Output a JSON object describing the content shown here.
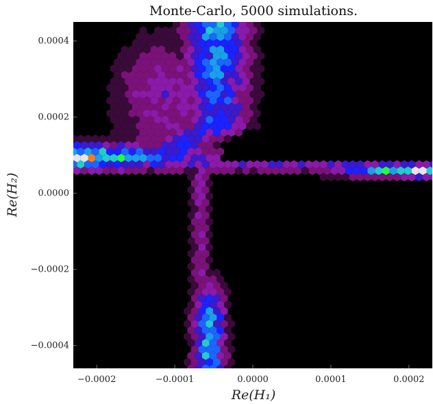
{
  "chart_data": {
    "type": "heatmap",
    "subtype": "hexbin",
    "title": "Monte-Carlo, 5000 simulations.",
    "xlabel": "Re(H₁)",
    "ylabel": "Re(H₂)",
    "xlim": [
      -0.00023,
      0.00023
    ],
    "ylim": [
      -0.00046,
      0.00045
    ],
    "x_ticks": [
      -0.0002,
      -0.0001,
      0.0,
      0.0001,
      0.0002
    ],
    "x_tick_labels": [
      "−0.0002",
      "−0.0001",
      "0.0000",
      "0.0001",
      "0.0002"
    ],
    "y_ticks": [
      -0.0004,
      -0.0002,
      0.0,
      0.0002,
      0.0004
    ],
    "y_tick_labels": [
      "−0.0004",
      "−0.0002",
      "0.0000",
      "0.0002",
      "0.0004"
    ],
    "background": "#000000",
    "colormap": [
      "#000000",
      "#3a0a3a",
      "#7a127a",
      "#8a1aaa",
      "#3a1acc",
      "#1a22ff",
      "#1a66ff",
      "#1aa0e8",
      "#22cccc",
      "#22ff44",
      "#ff7a1a",
      "#e6e6e6"
    ],
    "grid": false,
    "regions": [
      {
        "name": "upper-left arc",
        "x": [
          -0.00023,
          -5e-05
        ],
        "y": [
          9e-05,
          0.00045
        ],
        "peak_density": 0.7
      },
      {
        "name": "horizontal band (left)",
        "x": [
          -0.00023,
          -5e-05
        ],
        "y": [
          7e-05,
          0.00011
        ],
        "peak_density": 0.98
      },
      {
        "name": "horizontal band (center)",
        "x": [
          -5e-05,
          0.0001
        ],
        "y": [
          7e-05,
          9e-05
        ],
        "peak_density": 0.35
      },
      {
        "name": "horizontal band (right)",
        "x": [
          0.0001,
          0.00023
        ],
        "y": [
          6e-05,
          0.0001
        ],
        "peak_density": 0.95
      },
      {
        "name": "vertical band (middle)",
        "x": [
          -8e-05,
          -5e-05
        ],
        "y": [
          -0.00022,
          7e-05
        ],
        "peak_density": 0.3
      },
      {
        "name": "vertical band (lower)",
        "x": [
          -8e-05,
          -3e-05
        ],
        "y": [
          -0.00046,
          -0.00022
        ],
        "peak_density": 0.65
      }
    ]
  }
}
